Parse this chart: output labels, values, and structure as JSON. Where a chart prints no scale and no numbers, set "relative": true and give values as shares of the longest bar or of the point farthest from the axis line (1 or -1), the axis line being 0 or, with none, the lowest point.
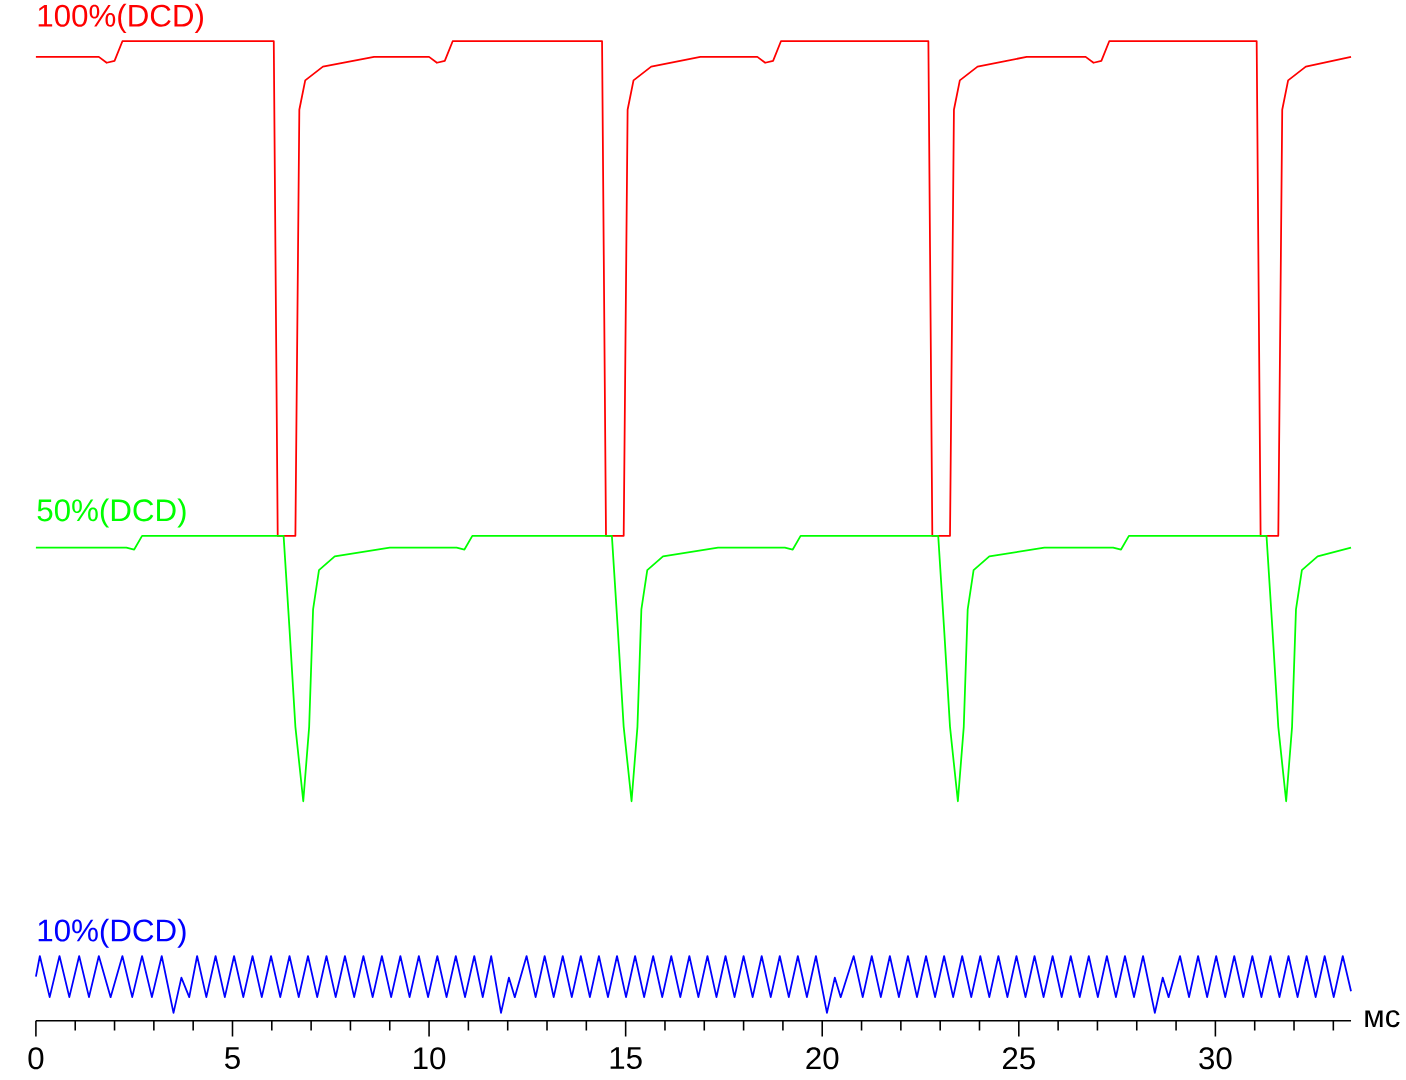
{
  "chart_data": {
    "type": "line",
    "relative": true,
    "xlabel": "мс",
    "xlim": [
      0,
      33.45
    ],
    "xticks": [
      0,
      {
        "value": 1,
        "label": null
      },
      {
        "value": 2,
        "label": null
      },
      {
        "value": 3,
        "label": null
      },
      {
        "value": 4,
        "label": null
      },
      5,
      {
        "value": 6,
        "label": null
      },
      {
        "value": 7,
        "label": null
      },
      {
        "value": 8,
        "label": null
      },
      {
        "value": 9,
        "label": null
      },
      10,
      {
        "value": 11,
        "label": null
      },
      {
        "value": 12,
        "label": null
      },
      {
        "value": 13,
        "label": null
      },
      {
        "value": 14,
        "label": null
      },
      15,
      {
        "value": 16,
        "label": null
      },
      {
        "value": 17,
        "label": null
      },
      {
        "value": 18,
        "label": null
      },
      {
        "value": 19,
        "label": null
      },
      20,
      {
        "value": 21,
        "label": null
      },
      {
        "value": 22,
        "label": null
      },
      {
        "value": 23,
        "label": null
      },
      {
        "value": 24,
        "label": null
      },
      25,
      {
        "value": 26,
        "label": null
      },
      {
        "value": 27,
        "label": null
      },
      {
        "value": 28,
        "label": null
      },
      {
        "value": 29,
        "label": null
      },
      30,
      {
        "value": 31,
        "label": null
      },
      {
        "value": 32,
        "label": null
      },
      {
        "value": 33,
        "label": null
      }
    ],
    "series": [
      {
        "name": "100%(DCD)",
        "color": "#ff0000",
        "x": [
          0,
          1.6,
          1.8,
          2.0,
          2.2,
          6.05,
          6.15,
          6.6,
          6.7,
          6.85,
          7.3,
          8.6,
          10.0,
          10.2,
          10.4,
          10.6,
          14.4,
          14.5,
          14.95,
          15.05,
          15.2,
          15.65,
          16.9,
          18.35,
          18.55,
          18.75,
          18.95,
          22.7,
          22.8,
          23.25,
          23.35,
          23.5,
          23.95,
          25.2,
          26.7,
          26.9,
          27.1,
          27.3,
          31.05,
          31.15,
          31.6,
          31.7,
          31.85,
          32.3,
          33.45
        ],
        "values": [
          0.984,
          0.984,
          0.978,
          0.98,
          1.0,
          1.0,
          0.495,
          0.495,
          0.93,
          0.96,
          0.974,
          0.984,
          0.984,
          0.978,
          0.98,
          1.0,
          1.0,
          0.495,
          0.495,
          0.93,
          0.96,
          0.974,
          0.984,
          0.984,
          0.978,
          0.98,
          1.0,
          1.0,
          0.495,
          0.495,
          0.93,
          0.96,
          0.974,
          0.984,
          0.984,
          0.978,
          0.98,
          1.0,
          1.0,
          0.495,
          0.495,
          0.93,
          0.96,
          0.974,
          0.984
        ]
      },
      {
        "name": "50%(DCD)",
        "color": "#00ff00",
        "x": [
          0,
          2.3,
          2.5,
          2.7,
          6.3,
          6.45,
          6.6,
          6.8,
          6.95,
          7.05,
          7.2,
          7.6,
          9.0,
          10.7,
          10.9,
          11.1,
          14.65,
          14.8,
          14.95,
          15.15,
          15.3,
          15.4,
          15.55,
          15.95,
          17.35,
          19.05,
          19.25,
          19.45,
          22.95,
          23.1,
          23.25,
          23.45,
          23.6,
          23.7,
          23.85,
          24.25,
          25.65,
          27.4,
          27.6,
          27.8,
          31.3,
          31.45,
          31.6,
          31.8,
          31.95,
          32.05,
          32.2,
          32.6,
          33.45
        ],
        "values": [
          0.483,
          0.483,
          0.481,
          0.495,
          0.495,
          0.4,
          0.3,
          0.224,
          0.3,
          0.42,
          0.46,
          0.474,
          0.483,
          0.483,
          0.481,
          0.495,
          0.495,
          0.4,
          0.3,
          0.224,
          0.3,
          0.42,
          0.46,
          0.474,
          0.483,
          0.483,
          0.481,
          0.495,
          0.495,
          0.4,
          0.3,
          0.224,
          0.3,
          0.42,
          0.46,
          0.474,
          0.483,
          0.483,
          0.481,
          0.495,
          0.495,
          0.4,
          0.3,
          0.224,
          0.3,
          0.42,
          0.46,
          0.474,
          0.483
        ]
      },
      {
        "name": "10%(DCD)",
        "color": "#0000ff",
        "x": [
          0,
          0.1,
          0.35,
          0.6,
          0.85,
          1.1,
          1.35,
          1.6,
          1.9,
          2.2,
          2.45,
          2.7,
          2.95,
          3.2,
          3.5,
          3.7,
          3.9,
          4.1,
          4.335,
          4.57,
          4.805,
          5.04,
          5.275,
          5.51,
          5.745,
          5.98,
          6.215,
          6.45,
          6.685,
          6.92,
          7.155,
          7.39,
          7.625,
          7.86,
          8.095,
          8.33,
          8.565,
          8.8,
          9.035,
          9.27,
          9.505,
          9.74,
          9.975,
          10.21,
          10.445,
          10.68,
          10.915,
          11.15,
          11.365,
          11.58,
          11.83,
          12.03,
          12.18,
          12.48,
          12.71,
          12.94,
          13.17,
          13.4,
          13.63,
          13.86,
          14.09,
          14.32,
          14.55,
          14.78,
          15.01,
          15.24,
          15.47,
          15.7,
          15.93,
          16.16,
          16.39,
          16.62,
          16.85,
          17.08,
          17.31,
          17.54,
          17.77,
          18.0,
          18.23,
          18.46,
          18.69,
          18.92,
          19.15,
          19.38,
          19.61,
          19.84,
          20.12,
          20.32,
          20.47,
          20.8,
          21.03,
          21.26,
          21.49,
          21.72,
          21.95,
          22.18,
          22.41,
          22.64,
          22.87,
          23.1,
          23.33,
          23.56,
          23.79,
          24.02,
          24.25,
          24.48,
          24.71,
          24.94,
          25.17,
          25.4,
          25.63,
          25.86,
          26.09,
          26.32,
          26.55,
          26.78,
          27.01,
          27.24,
          27.47,
          27.7,
          27.93,
          28.16,
          28.46,
          28.66,
          28.81,
          29.1,
          29.33,
          29.56,
          29.79,
          30.02,
          30.25,
          30.48,
          30.71,
          30.94,
          31.17,
          31.4,
          31.63,
          31.86,
          32.09,
          32.32,
          32.55,
          32.78,
          33.01,
          33.24,
          33.45
        ],
        "values": [
          0.045,
          0.066,
          0.024,
          0.066,
          0.024,
          0.066,
          0.024,
          0.066,
          0.024,
          0.066,
          0.024,
          0.066,
          0.024,
          0.066,
          0.008,
          0.044,
          0.024,
          0.066,
          0.024,
          0.066,
          0.024,
          0.066,
          0.024,
          0.066,
          0.024,
          0.066,
          0.024,
          0.066,
          0.024,
          0.066,
          0.024,
          0.066,
          0.024,
          0.066,
          0.024,
          0.066,
          0.024,
          0.066,
          0.024,
          0.066,
          0.024,
          0.066,
          0.024,
          0.066,
          0.024,
          0.066,
          0.024,
          0.066,
          0.024,
          0.066,
          0.008,
          0.044,
          0.024,
          0.066,
          0.024,
          0.066,
          0.024,
          0.066,
          0.024,
          0.066,
          0.024,
          0.066,
          0.024,
          0.066,
          0.024,
          0.066,
          0.024,
          0.066,
          0.024,
          0.066,
          0.024,
          0.066,
          0.024,
          0.066,
          0.024,
          0.066,
          0.024,
          0.066,
          0.024,
          0.066,
          0.024,
          0.066,
          0.024,
          0.066,
          0.024,
          0.066,
          0.008,
          0.044,
          0.024,
          0.066,
          0.024,
          0.066,
          0.024,
          0.066,
          0.024,
          0.066,
          0.024,
          0.066,
          0.024,
          0.066,
          0.024,
          0.066,
          0.024,
          0.066,
          0.024,
          0.066,
          0.024,
          0.066,
          0.024,
          0.066,
          0.024,
          0.066,
          0.024,
          0.066,
          0.024,
          0.066,
          0.024,
          0.066,
          0.024,
          0.066,
          0.024,
          0.066,
          0.008,
          0.044,
          0.024,
          0.066,
          0.024,
          0.066,
          0.024,
          0.066,
          0.024,
          0.066,
          0.024,
          0.066,
          0.024,
          0.066,
          0.024,
          0.066,
          0.024,
          0.066,
          0.024,
          0.066,
          0.024,
          0.066,
          0.03
        ]
      }
    ]
  }
}
